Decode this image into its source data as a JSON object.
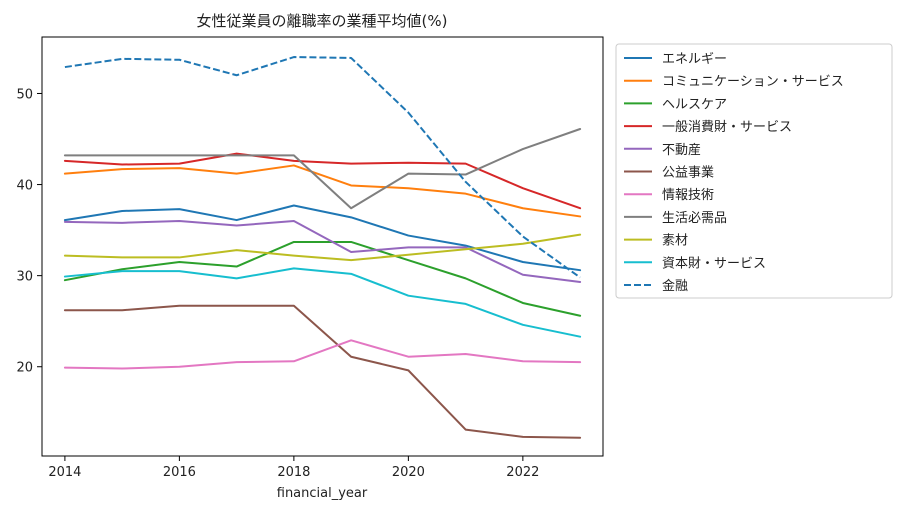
{
  "chart_data": {
    "type": "line",
    "title": "女性従業員の離職率の業種平均値(%)",
    "xlabel": "financial_year",
    "ylabel": "",
    "x": [
      2014,
      2015,
      2016,
      2017,
      2018,
      2019,
      2020,
      2021,
      2022,
      2023
    ],
    "xlim": [
      2013.6,
      2023.4
    ],
    "ylim": [
      10.2,
      56.2
    ],
    "xticks": [
      2014,
      2016,
      2018,
      2020,
      2022
    ],
    "yticks": [
      20,
      30,
      40,
      50
    ],
    "grid": false,
    "legend_position": "outside-right",
    "series": [
      {
        "name": "エネルギー",
        "color": "#1f77b4",
        "dash": "solid",
        "values": [
          36.1,
          37.1,
          37.3,
          36.1,
          37.7,
          36.4,
          34.4,
          33.3,
          31.5,
          30.6
        ]
      },
      {
        "name": "コミュニケーション・サービス",
        "color": "#ff7f0e",
        "dash": "solid",
        "values": [
          41.2,
          41.7,
          41.8,
          41.2,
          42.1,
          39.9,
          39.6,
          39.0,
          37.4,
          36.5
        ]
      },
      {
        "name": "ヘルスケア",
        "color": "#2ca02c",
        "dash": "solid",
        "values": [
          29.5,
          30.7,
          31.5,
          31.0,
          33.7,
          33.7,
          31.7,
          29.7,
          27.0,
          25.6
        ]
      },
      {
        "name": "一般消費財・サービス",
        "color": "#d62728",
        "dash": "solid",
        "values": [
          42.6,
          42.2,
          42.3,
          43.4,
          42.6,
          42.3,
          42.4,
          42.3,
          39.6,
          37.4
        ]
      },
      {
        "name": "不動産",
        "color": "#9467bd",
        "dash": "solid",
        "values": [
          35.9,
          35.8,
          36.0,
          35.5,
          36.0,
          32.6,
          33.1,
          33.1,
          30.1,
          29.3
        ]
      },
      {
        "name": "公益事業",
        "color": "#8c564b",
        "dash": "solid",
        "values": [
          26.2,
          26.2,
          26.7,
          26.7,
          26.7,
          21.1,
          19.6,
          13.1,
          12.3,
          12.2
        ]
      },
      {
        "name": "情報技術",
        "color": "#e377c2",
        "dash": "solid",
        "values": [
          19.9,
          19.8,
          20.0,
          20.5,
          20.6,
          22.9,
          21.1,
          21.4,
          20.6,
          20.5
        ]
      },
      {
        "name": "生活必需品",
        "color": "#7f7f7f",
        "dash": "solid",
        "values": [
          43.2,
          43.2,
          43.2,
          43.2,
          43.2,
          37.4,
          41.2,
          41.1,
          43.9,
          46.1
        ]
      },
      {
        "name": "素材",
        "color": "#bcbd22",
        "dash": "solid",
        "values": [
          32.2,
          32.0,
          32.0,
          32.8,
          32.2,
          31.7,
          32.3,
          32.9,
          33.5,
          34.5
        ]
      },
      {
        "name": "資本財・サービス",
        "color": "#17becf",
        "dash": "solid",
        "values": [
          29.9,
          30.5,
          30.5,
          29.7,
          30.8,
          30.2,
          27.8,
          26.9,
          24.6,
          23.3
        ]
      },
      {
        "name": "金融",
        "color": "#1f77b4",
        "dash": "dashed",
        "values": [
          52.9,
          53.8,
          53.7,
          52.0,
          54.0,
          53.9,
          47.9,
          40.3,
          34.3,
          29.8
        ]
      }
    ]
  }
}
